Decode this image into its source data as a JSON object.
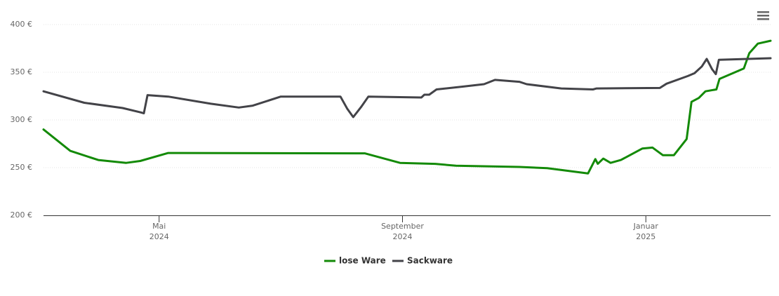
{
  "chart_data": {
    "type": "line",
    "ylim": [
      200,
      400
    ],
    "yticks": [
      {
        "value": 200,
        "label": "200 €"
      },
      {
        "value": 250,
        "label": "250 €"
      },
      {
        "value": 300,
        "label": "300 €"
      },
      {
        "value": 350,
        "label": "350 €"
      },
      {
        "value": 400,
        "label": "400 €"
      }
    ],
    "xlim": [
      3.1,
      15.05
    ],
    "xticks": [
      {
        "value": 5,
        "label": [
          "Mai",
          "2024"
        ]
      },
      {
        "value": 9,
        "label": [
          "September",
          "2024"
        ]
      },
      {
        "value": 13,
        "label": [
          "Januar",
          "2025"
        ]
      }
    ],
    "grid": true,
    "legend": "bottom",
    "series": [
      {
        "name": "lose Ware",
        "color": "#138a07",
        "x": [
          3.1,
          3.54,
          4.0,
          4.46,
          4.69,
          5.15,
          8.38,
          8.96,
          9.54,
          9.88,
          10.92,
          11.38,
          12.05,
          12.17,
          12.21,
          12.3,
          12.42,
          12.59,
          12.94,
          13.11,
          13.28,
          13.46,
          13.67,
          13.75,
          13.87,
          13.98,
          14.16,
          14.21,
          14.61,
          14.7,
          14.84,
          15.05
        ],
        "values": [
          290,
          267.6,
          258,
          255,
          257,
          265.4,
          265,
          255,
          254,
          252,
          250.7,
          249.5,
          244,
          259,
          254,
          259.5,
          255,
          258,
          270,
          271,
          263,
          263,
          280,
          319,
          323,
          330,
          332,
          343,
          354,
          370,
          380,
          383
        ]
      },
      {
        "name": "Sackware",
        "color": "#434348",
        "x": [
          3.1,
          3.77,
          4.4,
          4.69,
          4.75,
          4.81,
          5.15,
          5.85,
          6.31,
          6.54,
          7.0,
          7.98,
          8.09,
          8.19,
          8.32,
          8.44,
          9.31,
          9.36,
          9.44,
          9.56,
          10.0,
          10.34,
          10.52,
          10.92,
          11.04,
          11.61,
          12.13,
          12.19,
          13.23,
          13.34,
          13.69,
          13.8,
          13.92,
          14.0,
          14.09,
          14.15,
          14.2,
          15.05
        ],
        "values": [
          330,
          318,
          312.5,
          308,
          307,
          326,
          324.5,
          317,
          313,
          315,
          324.5,
          324.5,
          312,
          303,
          313.5,
          324.5,
          323.5,
          326.5,
          326.5,
          332,
          335,
          337.5,
          342,
          340,
          337.5,
          333,
          332,
          333,
          333.5,
          338,
          346,
          349,
          356,
          364,
          353,
          348,
          363,
          364.7
        ]
      }
    ]
  }
}
